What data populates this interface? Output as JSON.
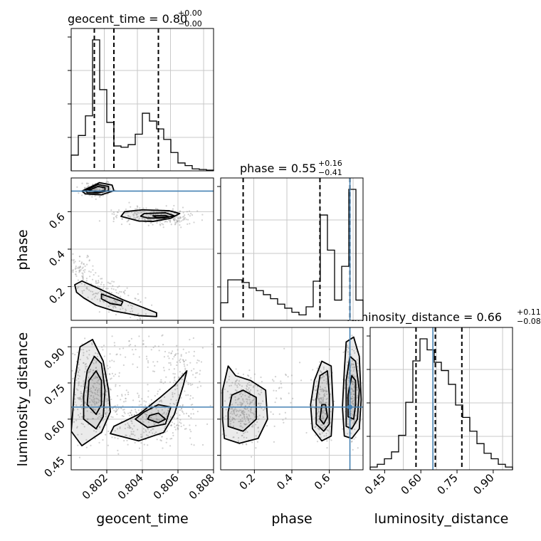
{
  "chart_data": {
    "type": "corner",
    "parameters": [
      "geocent_time",
      "phase",
      "luminosity_distance"
    ],
    "titles": [
      {
        "param": "geocent_time",
        "text": "geocent_time = 0.80",
        "plus": "+0.00",
        "minus": "−0.00"
      },
      {
        "param": "phase",
        "text": "phase = 0.55",
        "plus": "+0.16",
        "minus": "−0.41"
      },
      {
        "param": "luminosity_distance",
        "text": "luminosity_distance = 0.66",
        "plus": "+0.11",
        "minus": "−0.08"
      }
    ],
    "truths": {
      "geocent_time": null,
      "phase": 0.71,
      "luminosity_distance": 0.65
    },
    "truth_color": "#4682b4",
    "ranges": {
      "geocent_time": [
        0.8,
        0.808
      ],
      "phase": [
        0.02,
        0.78
      ],
      "luminosity_distance": [
        0.39,
        0.98
      ]
    },
    "ticks": {
      "geocent_time": [
        "0.802",
        "0.804",
        "0.806",
        "0.808"
      ],
      "phase_x": [
        "0.2",
        "0.4",
        "0.6"
      ],
      "phase_y": [
        "0.2",
        "0.4",
        "0.6"
      ],
      "luminosity_distance_x": [
        "0.45",
        "0.60",
        "0.75",
        "0.90"
      ],
      "luminosity_distance_y": [
        "0.45",
        "0.60",
        "0.75",
        "0.90"
      ]
    },
    "histograms": {
      "geocent_time": {
        "edges": [
          0.8,
          0.8004,
          0.8008,
          0.8012,
          0.8016,
          0.802,
          0.8024,
          0.8028,
          0.8032,
          0.8036,
          0.804,
          0.8044,
          0.8048,
          0.8052,
          0.8056,
          0.806,
          0.8064,
          0.8068,
          0.8072,
          0.8076,
          0.808
        ],
        "counts": [
          0.12,
          0.27,
          0.42,
          1.0,
          0.62,
          0.37,
          0.19,
          0.18,
          0.2,
          0.28,
          0.44,
          0.38,
          0.32,
          0.24,
          0.14,
          0.06,
          0.04,
          0.015,
          0.01,
          0.005
        ],
        "quantiles": [
          0.8013,
          0.8024,
          0.8049
        ]
      },
      "phase": {
        "edges": [
          0.02,
          0.058,
          0.096,
          0.134,
          0.172,
          0.21,
          0.248,
          0.286,
          0.324,
          0.362,
          0.4,
          0.438,
          0.476,
          0.514,
          0.552,
          0.59,
          0.628,
          0.666,
          0.704,
          0.742,
          0.78
        ],
        "counts": [
          0.13,
          0.3,
          0.3,
          0.28,
          0.24,
          0.22,
          0.19,
          0.16,
          0.12,
          0.09,
          0.06,
          0.04,
          0.1,
          0.29,
          0.78,
          0.52,
          0.15,
          0.4,
          0.97,
          0.15
        ],
        "quantiles": [
          0.14,
          0.55,
          0.71
        ]
      },
      "luminosity_distance": {
        "edges": [
          0.39,
          0.4195,
          0.449,
          0.4785,
          0.508,
          0.5375,
          0.567,
          0.5965,
          0.626,
          0.6555,
          0.685,
          0.7145,
          0.744,
          0.7735,
          0.803,
          0.8325,
          0.862,
          0.8915,
          0.921,
          0.9505,
          0.98
        ],
        "counts": [
          0.02,
          0.04,
          0.08,
          0.13,
          0.25,
          0.49,
          0.79,
          0.95,
          0.87,
          0.78,
          0.72,
          0.62,
          0.47,
          0.38,
          0.28,
          0.19,
          0.12,
          0.08,
          0.04,
          0.02
        ],
        "quantiles": [
          0.58,
          0.66,
          0.77
        ]
      }
    },
    "contours_2d": {
      "phase_vs_geocent_time": [
        [
          [
            0.8006,
            0.71
          ],
          [
            0.8016,
            0.755
          ],
          [
            0.8023,
            0.742
          ],
          [
            0.8024,
            0.712
          ],
          [
            0.8017,
            0.69
          ],
          [
            0.8008,
            0.695
          ]
        ],
        [
          [
            0.8008,
            0.712
          ],
          [
            0.8015,
            0.745
          ],
          [
            0.8021,
            0.735
          ],
          [
            0.8021,
            0.712
          ],
          [
            0.8015,
            0.7
          ],
          [
            0.8009,
            0.702
          ]
        ],
        [
          [
            0.801,
            0.714
          ],
          [
            0.8015,
            0.735
          ],
          [
            0.8019,
            0.728
          ],
          [
            0.8019,
            0.714
          ],
          [
            0.8014,
            0.706
          ]
        ],
        [
          [
            0.803,
            0.6
          ],
          [
            0.804,
            0.61
          ],
          [
            0.8055,
            0.605
          ],
          [
            0.8061,
            0.59
          ],
          [
            0.8056,
            0.565
          ],
          [
            0.8046,
            0.548
          ],
          [
            0.8038,
            0.55
          ],
          [
            0.8028,
            0.575
          ]
        ],
        [
          [
            0.8041,
            0.59
          ],
          [
            0.8053,
            0.594
          ],
          [
            0.8058,
            0.578
          ],
          [
            0.8052,
            0.566
          ],
          [
            0.8043,
            0.566
          ],
          [
            0.8039,
            0.576
          ]
        ],
        [
          [
            0.8046,
            0.578
          ],
          [
            0.8053,
            0.58
          ],
          [
            0.8055,
            0.572
          ],
          [
            0.8048,
            0.569
          ]
        ],
        [
          [
            0.8006,
            0.23
          ],
          [
            0.8013,
            0.2
          ],
          [
            0.802,
            0.17
          ],
          [
            0.8029,
            0.13
          ],
          [
            0.804,
            0.09
          ],
          [
            0.8048,
            0.06
          ],
          [
            0.8048,
            0.04
          ],
          [
            0.8038,
            0.045
          ],
          [
            0.8024,
            0.07
          ],
          [
            0.8014,
            0.1
          ],
          [
            0.8007,
            0.14
          ],
          [
            0.8003,
            0.17
          ],
          [
            0.8002,
            0.21
          ]
        ],
        [
          [
            0.8017,
            0.16
          ],
          [
            0.8023,
            0.14
          ],
          [
            0.8029,
            0.12
          ],
          [
            0.8028,
            0.1
          ],
          [
            0.8022,
            0.11
          ],
          [
            0.8017,
            0.135
          ]
        ]
      ],
      "luminosity_distance_vs_geocent_time": [
        [
          [
            0.8,
            0.55
          ],
          [
            0.8006,
            0.49
          ],
          [
            0.8017,
            0.545
          ],
          [
            0.8022,
            0.63
          ],
          [
            0.8021,
            0.72
          ],
          [
            0.8018,
            0.84
          ],
          [
            0.8012,
            0.93
          ],
          [
            0.8005,
            0.9
          ],
          [
            0.8002,
            0.76
          ],
          [
            0.8001,
            0.64
          ]
        ],
        [
          [
            0.8022,
            0.54
          ],
          [
            0.8038,
            0.51
          ],
          [
            0.8052,
            0.545
          ],
          [
            0.8058,
            0.62
          ],
          [
            0.8063,
            0.74
          ],
          [
            0.8065,
            0.8
          ],
          [
            0.8058,
            0.74
          ],
          [
            0.805,
            0.69
          ],
          [
            0.8038,
            0.62
          ],
          [
            0.8024,
            0.57
          ]
        ],
        [
          [
            0.8007,
            0.6
          ],
          [
            0.8014,
            0.56
          ],
          [
            0.8018,
            0.61
          ],
          [
            0.8019,
            0.72
          ],
          [
            0.8017,
            0.83
          ],
          [
            0.8013,
            0.86
          ],
          [
            0.8009,
            0.8
          ],
          [
            0.8007,
            0.7
          ]
        ],
        [
          [
            0.8009,
            0.66
          ],
          [
            0.8014,
            0.62
          ],
          [
            0.8017,
            0.66
          ],
          [
            0.8017,
            0.76
          ],
          [
            0.8014,
            0.8
          ],
          [
            0.801,
            0.76
          ]
        ],
        [
          [
            0.8036,
            0.6
          ],
          [
            0.8043,
            0.565
          ],
          [
            0.8053,
            0.58
          ],
          [
            0.8056,
            0.65
          ],
          [
            0.8049,
            0.66
          ],
          [
            0.8041,
            0.63
          ]
        ],
        [
          [
            0.8043,
            0.6
          ],
          [
            0.8049,
            0.585
          ],
          [
            0.8053,
            0.6
          ],
          [
            0.8049,
            0.625
          ],
          [
            0.8044,
            0.615
          ]
        ]
      ],
      "luminosity_distance_vs_phase": [
        [
          [
            0.04,
            0.52
          ],
          [
            0.12,
            0.5
          ],
          [
            0.22,
            0.52
          ],
          [
            0.27,
            0.6
          ],
          [
            0.26,
            0.72
          ],
          [
            0.18,
            0.76
          ],
          [
            0.1,
            0.78
          ],
          [
            0.06,
            0.82
          ],
          [
            0.03,
            0.72
          ],
          [
            0.03,
            0.6
          ]
        ],
        [
          [
            0.06,
            0.57
          ],
          [
            0.14,
            0.55
          ],
          [
            0.21,
            0.6
          ],
          [
            0.21,
            0.69
          ],
          [
            0.14,
            0.72
          ],
          [
            0.08,
            0.7
          ],
          [
            0.06,
            0.63
          ]
        ],
        [
          [
            0.51,
            0.56
          ],
          [
            0.56,
            0.51
          ],
          [
            0.61,
            0.53
          ],
          [
            0.62,
            0.66
          ],
          [
            0.61,
            0.82
          ],
          [
            0.56,
            0.84
          ],
          [
            0.52,
            0.76
          ],
          [
            0.5,
            0.66
          ]
        ],
        [
          [
            0.53,
            0.58
          ],
          [
            0.57,
            0.55
          ],
          [
            0.6,
            0.58
          ],
          [
            0.6,
            0.7
          ],
          [
            0.59,
            0.8
          ],
          [
            0.55,
            0.78
          ],
          [
            0.53,
            0.68
          ]
        ],
        [
          [
            0.55,
            0.6
          ],
          [
            0.57,
            0.58
          ],
          [
            0.59,
            0.61
          ],
          [
            0.58,
            0.66
          ],
          [
            0.56,
            0.66
          ]
        ],
        [
          [
            0.68,
            0.53
          ],
          [
            0.72,
            0.52
          ],
          [
            0.76,
            0.56
          ],
          [
            0.77,
            0.68
          ],
          [
            0.76,
            0.86
          ],
          [
            0.73,
            0.94
          ],
          [
            0.69,
            0.92
          ],
          [
            0.68,
            0.8
          ],
          [
            0.67,
            0.65
          ]
        ],
        [
          [
            0.69,
            0.57
          ],
          [
            0.72,
            0.56
          ],
          [
            0.75,
            0.6
          ],
          [
            0.76,
            0.72
          ],
          [
            0.74,
            0.84
          ],
          [
            0.71,
            0.86
          ],
          [
            0.69,
            0.76
          ]
        ],
        [
          [
            0.7,
            0.61
          ],
          [
            0.73,
            0.6
          ],
          [
            0.74,
            0.66
          ],
          [
            0.74,
            0.76
          ],
          [
            0.72,
            0.78
          ],
          [
            0.7,
            0.7
          ]
        ]
      ]
    }
  }
}
